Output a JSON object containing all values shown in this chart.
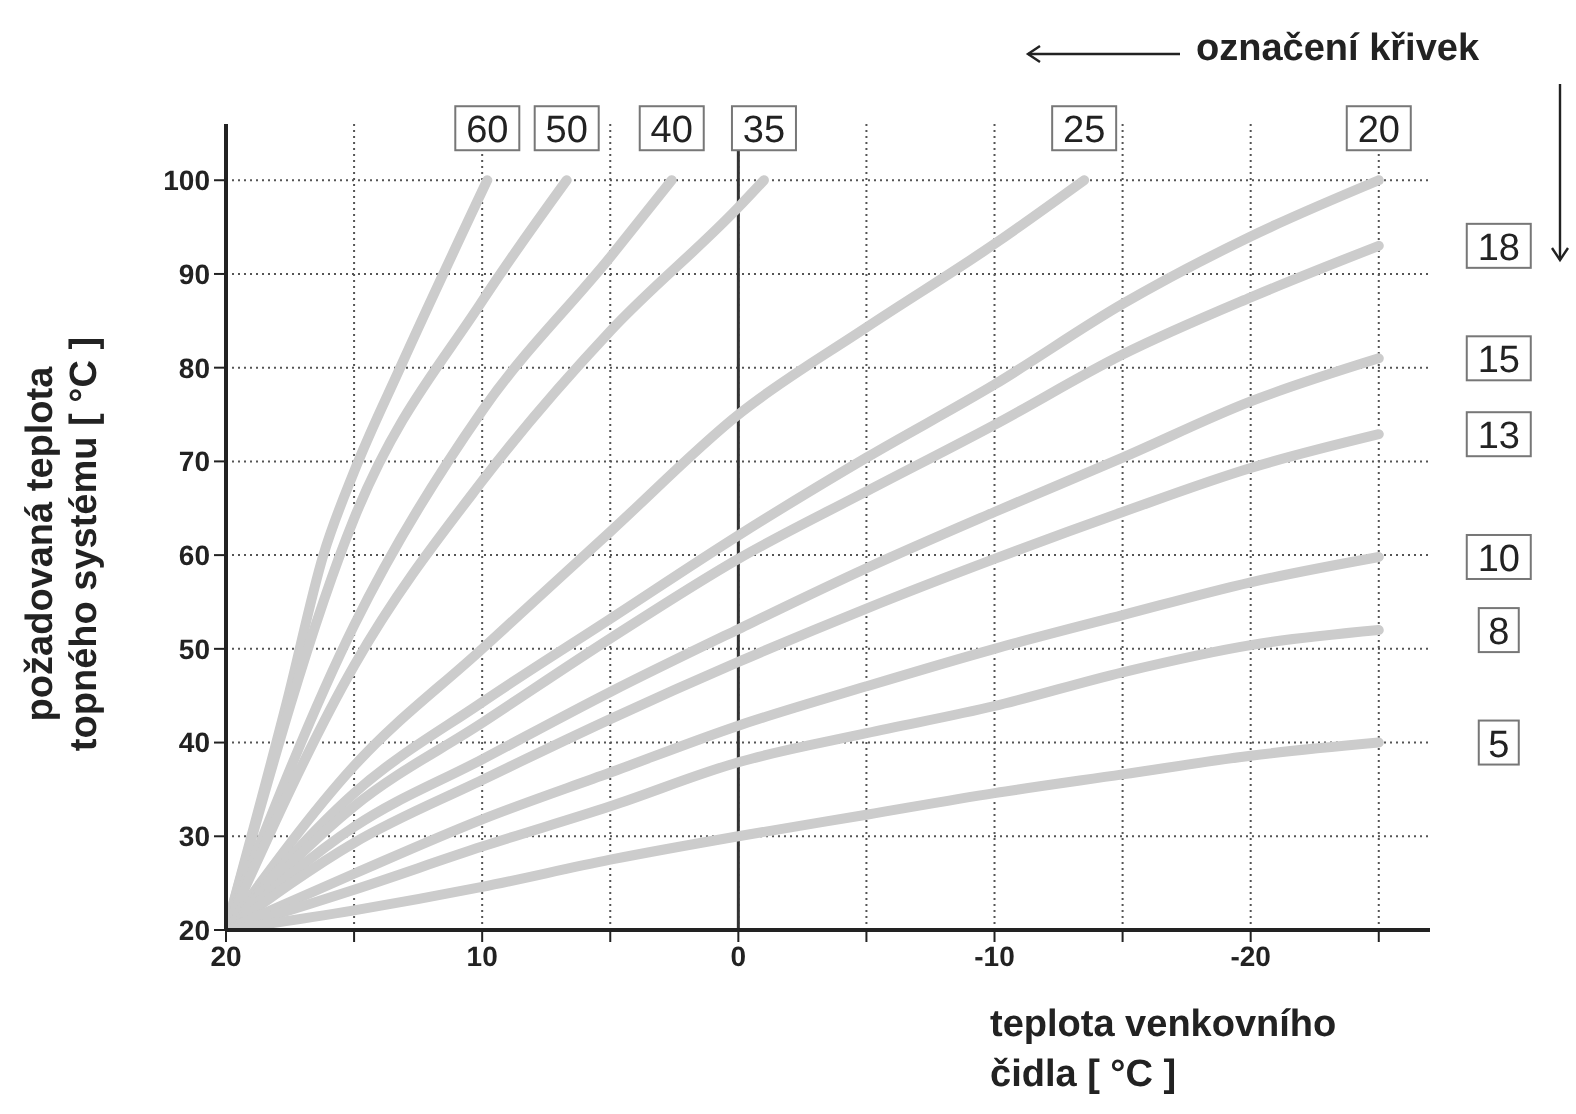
{
  "chart_data": {
    "type": "line",
    "xlabel": "teplota venkovního čidla [ °C ]",
    "ylabel": "požadovaná teplota topného systému [ °C ]",
    "annotations": [
      "označení křivek"
    ],
    "x": [
      20,
      15,
      10,
      5,
      0,
      -5,
      -10,
      -15,
      -20,
      -25
    ],
    "xlim": [
      20,
      -27
    ],
    "xticks": [
      20,
      {
        "value": 15,
        "label": null
      },
      10,
      {
        "value": 5,
        "label": null
      },
      0,
      {
        "value": -5,
        "label": null
      },
      -10,
      {
        "value": -15,
        "label": null
      },
      -20,
      {
        "value": -25,
        "label": null
      }
    ],
    "ylim": [
      20,
      106
    ],
    "yticks": [
      20,
      30,
      40,
      50,
      60,
      70,
      80,
      90,
      100
    ],
    "grid": true,
    "marker": "none",
    "line_style": "solid",
    "ref_lines": [
      {
        "axis": "x",
        "value": 0,
        "color": "#333333"
      }
    ],
    "series": [
      {
        "name": "60",
        "color": "#cccccc",
        "x": [
          20,
          17.6,
          16.2,
          15,
          13.2,
          9.8
        ],
        "values": [
          20,
          44.6,
          60,
          68.9,
          80,
          100
        ]
      },
      {
        "name": "50",
        "color": "#cccccc",
        "x": [
          20,
          15,
          10,
          6.7
        ],
        "values": [
          20,
          63.9,
          87.1,
          100
        ]
      },
      {
        "name": "40",
        "color": "#cccccc",
        "x": [
          20,
          15,
          10,
          5,
          2.6
        ],
        "values": [
          20,
          52.5,
          75.4,
          91.8,
          100
        ]
      },
      {
        "name": "35",
        "color": "#cccccc",
        "x": [
          20,
          15,
          10,
          5,
          0,
          -1
        ],
        "values": [
          20,
          48.2,
          67.9,
          83.9,
          97.1,
          100
        ]
      },
      {
        "name": "25",
        "color": "#cccccc",
        "x": [
          20,
          15,
          10,
          5,
          0,
          -5,
          -10,
          -13.5
        ],
        "values": [
          20,
          37.5,
          50,
          62.5,
          75,
          84.3,
          93.2,
          100
        ]
      },
      {
        "name": "20",
        "color": "#cccccc",
        "values": [
          20,
          34.6,
          44.3,
          53.2,
          62.1,
          70.4,
          78.2,
          86.8,
          94,
          100
        ]
      },
      {
        "name": "18",
        "color": "#cccccc",
        "values": [
          20,
          33.2,
          42.1,
          51.1,
          59.6,
          66.8,
          73.9,
          81.4,
          87.5,
          93
        ]
      },
      {
        "name": "15",
        "color": "#cccccc",
        "values": [
          20,
          31,
          38.2,
          45.4,
          52.1,
          58.6,
          64.6,
          70.4,
          76.4,
          81
        ]
      },
      {
        "name": "13",
        "color": "#cccccc",
        "values": [
          20,
          29.3,
          36,
          42.5,
          48.6,
          54.3,
          59.6,
          64.6,
          69.3,
          72.9
        ]
      },
      {
        "name": "10",
        "color": "#cccccc",
        "values": [
          20,
          26,
          31.8,
          36.8,
          41.8,
          46,
          50,
          53.6,
          57.1,
          59.8
        ]
      },
      {
        "name": "8",
        "color": "#cccccc",
        "values": [
          20,
          24.3,
          28.9,
          33.2,
          37.9,
          41,
          43.9,
          47.5,
          50.4,
          52
        ]
      },
      {
        "name": "5",
        "color": "#cccccc",
        "values": [
          20,
          22.1,
          24.6,
          27.5,
          30,
          32.3,
          34.6,
          36.6,
          38.6,
          40
        ]
      }
    ]
  }
}
